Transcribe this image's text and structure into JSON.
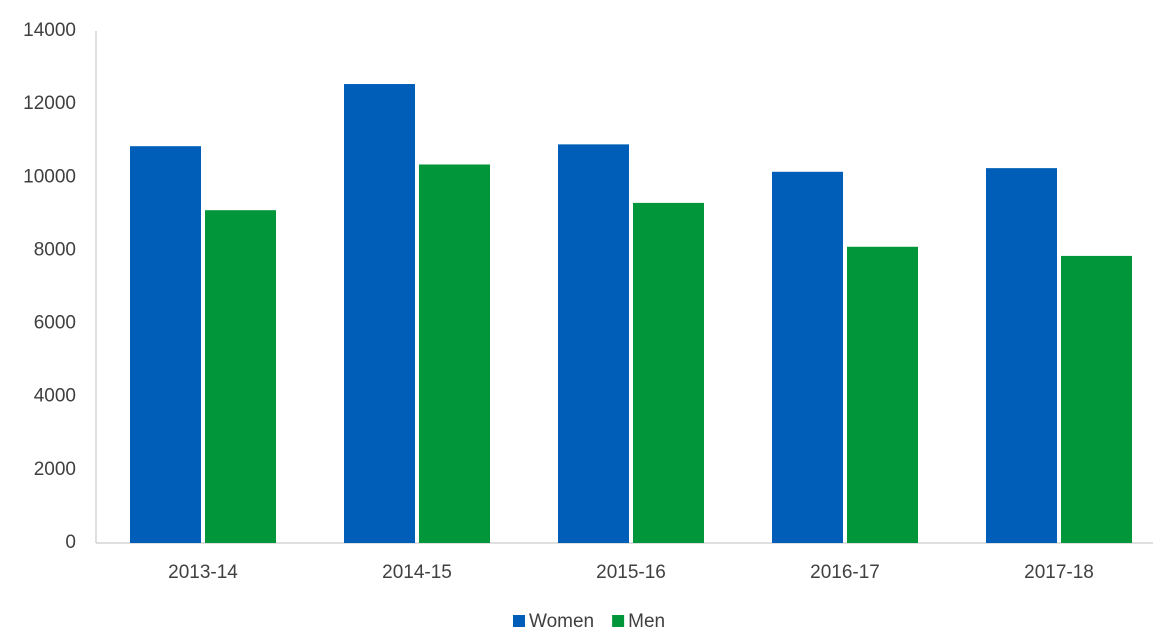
{
  "chart_data": {
    "type": "bar",
    "categories": [
      "2013-14",
      "2014-15",
      "2015-16",
      "2016-17",
      "2017-18"
    ],
    "series": [
      {
        "name": "Women",
        "color": "#005EB8",
        "values": [
          10850,
          12550,
          10900,
          10150,
          10250
        ]
      },
      {
        "name": "Men",
        "color": "#009639",
        "values": [
          9100,
          10350,
          9300,
          8100,
          7850
        ]
      }
    ],
    "ylim": [
      0,
      14000
    ],
    "yticks": [
      0,
      2000,
      4000,
      6000,
      8000,
      10000,
      12000,
      14000
    ],
    "grid": false,
    "legend": "bottom"
  }
}
